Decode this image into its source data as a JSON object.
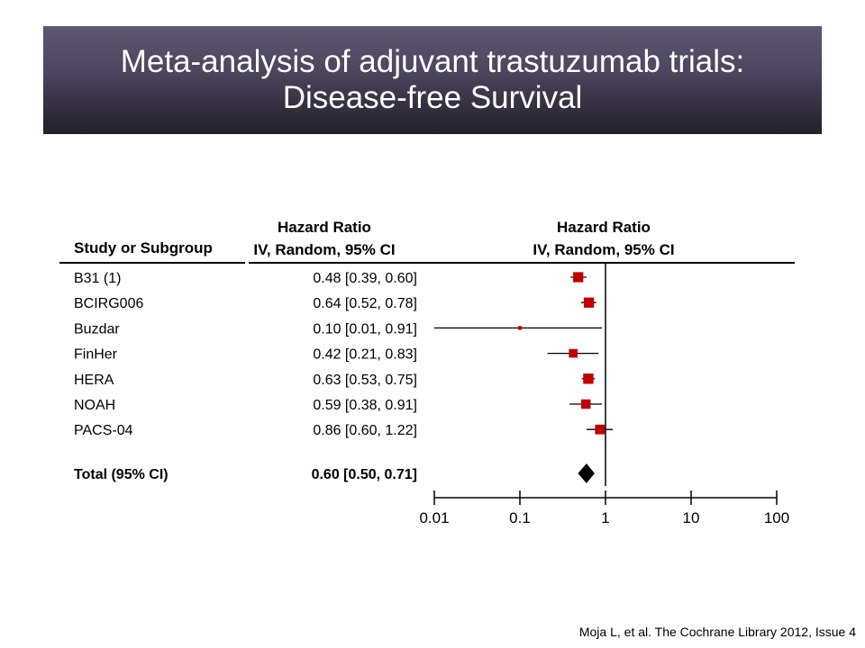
{
  "slide": {
    "title_line1": "Meta-analysis of adjuvant trastuzumab trials:",
    "title_line2": "Disease-free Survival",
    "citation": "Moja L, et al. The Cochrane Library 2012, Issue 4"
  },
  "colors": {
    "marker": "#c00000",
    "text": "#000000"
  },
  "chart_data": {
    "type": "forest",
    "header_study": "Study or Subgroup",
    "header_hr_col_line1": "Hazard Ratio",
    "header_hr_col_line2": "IV, Random, 95% CI",
    "header_plot_line1": "Hazard Ratio",
    "header_plot_line2": "IV, Random, 95% CI",
    "scale": "log",
    "xlim": [
      0.01,
      100
    ],
    "x_ticks": [
      0.01,
      0.1,
      1,
      10,
      100
    ],
    "x_tick_labels": [
      "0.01",
      "0.1",
      "1",
      "10",
      "100"
    ],
    "null_line": 1,
    "studies": [
      {
        "name": "B31 (1)",
        "hr": 0.48,
        "lo": 0.39,
        "hi": 0.6,
        "label": "0.48 [0.39, 0.60]"
      },
      {
        "name": "BCIRG006",
        "hr": 0.64,
        "lo": 0.52,
        "hi": 0.78,
        "label": "0.64 [0.52, 0.78]"
      },
      {
        "name": "Buzdar",
        "hr": 0.1,
        "lo": 0.01,
        "hi": 0.91,
        "label": "0.10 [0.01, 0.91]"
      },
      {
        "name": "FinHer",
        "hr": 0.42,
        "lo": 0.21,
        "hi": 0.83,
        "label": "0.42 [0.21, 0.83]"
      },
      {
        "name": "HERA",
        "hr": 0.63,
        "lo": 0.53,
        "hi": 0.75,
        "label": "0.63 [0.53, 0.75]"
      },
      {
        "name": "NOAH",
        "hr": 0.59,
        "lo": 0.38,
        "hi": 0.91,
        "label": "0.59 [0.38, 0.91]"
      },
      {
        "name": "PACS-04",
        "hr": 0.86,
        "lo": 0.6,
        "hi": 1.22,
        "label": "0.86 [0.60, 1.22]"
      }
    ],
    "total": {
      "name": "Total (95% CI)",
      "hr": 0.6,
      "lo": 0.5,
      "hi": 0.71,
      "label": "0.60 [0.50, 0.71]"
    }
  }
}
